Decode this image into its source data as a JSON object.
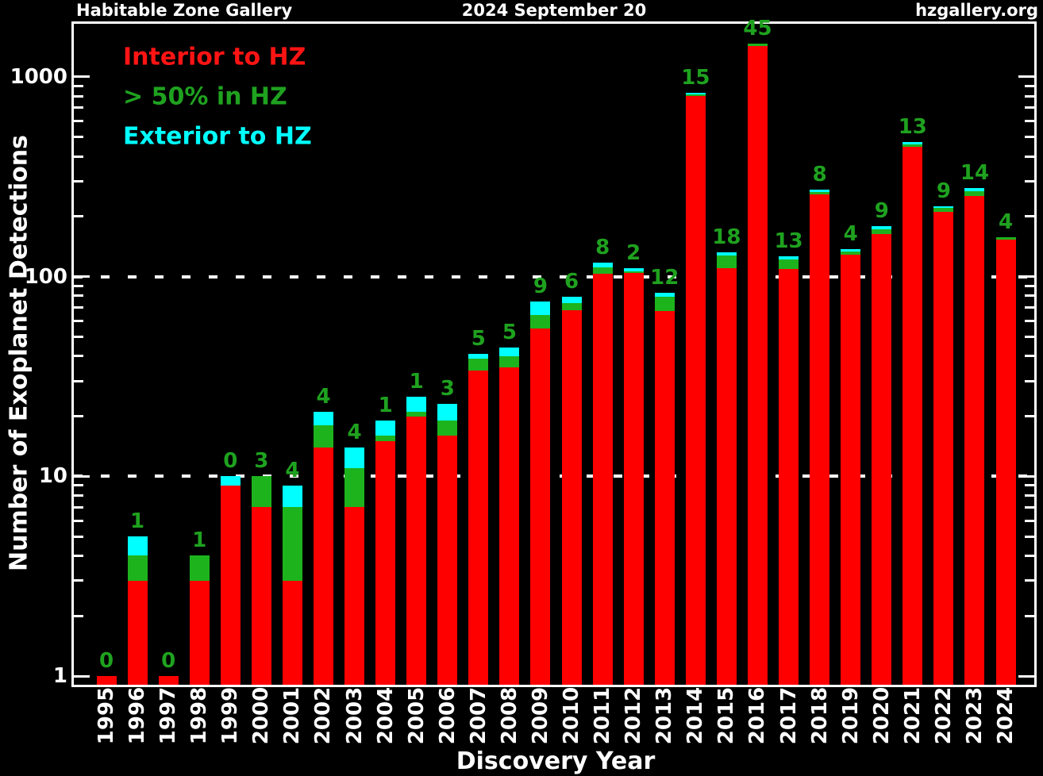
{
  "header": {
    "left": "Habitable Zone Gallery",
    "center": "2024 September 20",
    "right": "hzgallery.org"
  },
  "colors": {
    "background": "#000000",
    "frame": "#ffffff",
    "red": "#fe0000",
    "green_bar": "#1db31d",
    "green_text": "#1fa21f",
    "cyan": "#00ffff",
    "text": "#ffffff"
  },
  "legend": {
    "items": [
      {
        "label": "Interior to HZ",
        "color": "#fe1414"
      },
      {
        "label": "> 50% in HZ",
        "color": "#1fa21f"
      },
      {
        "label": "Exterior to HZ",
        "color": "#00ffff"
      }
    ]
  },
  "chart_data": {
    "type": "bar",
    "subtype": "stacked",
    "yscale": "log",
    "title": "",
    "xlabel": "Discovery Year",
    "ylabel": "Number of Exoplanet Detections",
    "ylim": [
      1,
      1800
    ],
    "y_ticks": [
      1,
      10,
      100,
      1000
    ],
    "gridlines": [
      10,
      100
    ],
    "grid_style": "dotted",
    "legend_position": "top-left-inside",
    "categories": [
      "1995",
      "1996",
      "1997",
      "1998",
      "1999",
      "2000",
      "2001",
      "2002",
      "2003",
      "2004",
      "2005",
      "2006",
      "2007",
      "2008",
      "2009",
      "2010",
      "2011",
      "2012",
      "2013",
      "2014",
      "2015",
      "2016",
      "2017",
      "2018",
      "2019",
      "2020",
      "2021",
      "2022",
      "2023",
      "2024"
    ],
    "series": [
      {
        "name": "Interior to HZ",
        "color_key": "red",
        "values": [
          1,
          3,
          1,
          3,
          9,
          7,
          3,
          14,
          7,
          15,
          20,
          16,
          34,
          35,
          55,
          68,
          103,
          104,
          67,
          805,
          110,
          1425,
          109,
          257,
          129,
          164,
          448,
          211,
          253,
          153
        ]
      },
      {
        "name": "> 50% in HZ",
        "color_key": "green_bar",
        "values": [
          0,
          1,
          0,
          1,
          0,
          3,
          4,
          4,
          4,
          1,
          1,
          3,
          5,
          5,
          9,
          6,
          8,
          2,
          12,
          15,
          18,
          45,
          13,
          8,
          4,
          9,
          13,
          9,
          14,
          4
        ]
      },
      {
        "name": "Exterior to HZ",
        "color_key": "cyan",
        "values": [
          0,
          1,
          0,
          0,
          1,
          0,
          2,
          3,
          3,
          3,
          4,
          4,
          2,
          4,
          11,
          5,
          6,
          4,
          4,
          12,
          4,
          0,
          4,
          7,
          4,
          6,
          11,
          5,
          10,
          0
        ]
      }
    ],
    "bar_labels": [
      "0",
      "1",
      "0",
      "1",
      "0",
      "3",
      "4",
      "4",
      "4",
      "1",
      "1",
      "3",
      "5",
      "5",
      "9",
      "6",
      "8",
      "2",
      "12",
      "15",
      "18",
      "45",
      "13",
      "8",
      "4",
      "9",
      "13",
      "9",
      "14",
      "4"
    ],
    "bar_label_meaning": "count of > 50% in HZ detections per year",
    "totals": [
      1,
      5,
      1,
      4,
      10,
      10,
      9,
      21,
      14,
      19,
      25,
      23,
      41,
      44,
      75,
      79,
      117,
      110,
      83,
      832,
      132,
      1470,
      126,
      272,
      137,
      179,
      472,
      225,
      277,
      157
    ]
  }
}
